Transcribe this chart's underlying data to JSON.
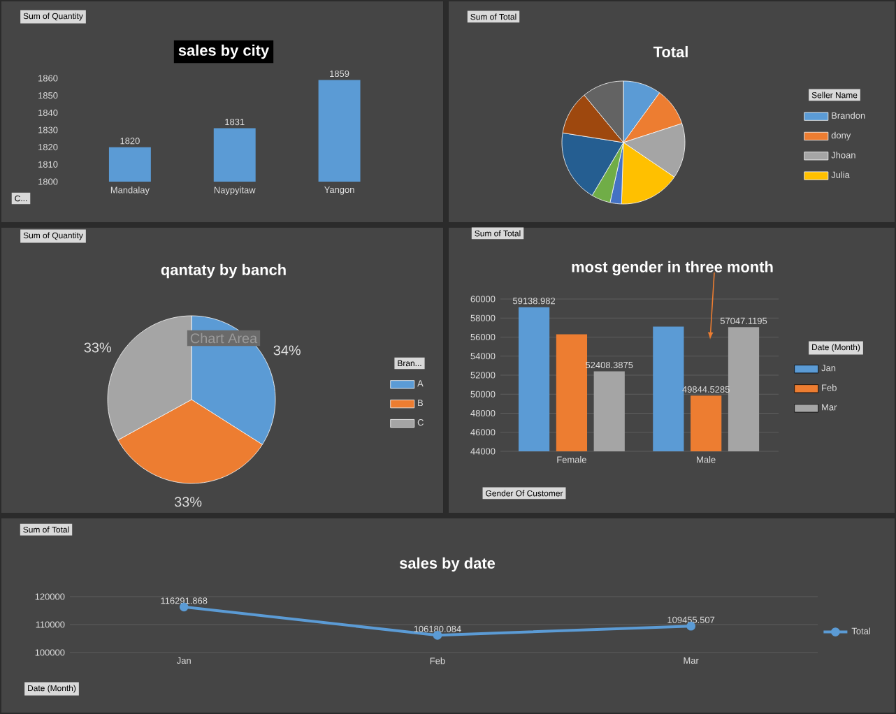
{
  "chart_data": [
    {
      "type": "bar",
      "title": "sales by city",
      "categories": [
        "Mandalay",
        "Naypyitaw",
        "Yangon"
      ],
      "values": [
        1820,
        1831,
        1859
      ],
      "color": "#5b9bd5",
      "ylim": [
        1800,
        1860
      ],
      "yticks": [
        1800,
        1810,
        1820,
        1830,
        1840,
        1850,
        1860
      ],
      "data_labels": true,
      "annotations": [
        "Sum of Quantity",
        "C..."
      ]
    },
    {
      "type": "pie",
      "title": "Total",
      "legend_title": "Seller Name",
      "categories": [
        "Brandon",
        "dony",
        "Jhoan",
        "Julia",
        null,
        null,
        null,
        null,
        null
      ],
      "values": [
        10,
        10,
        14.5,
        16,
        3,
        5,
        19,
        11.5,
        11
      ],
      "colors": [
        "#5b9bd5",
        "#ed7d31",
        "#a5a5a5",
        "#ffc000",
        "#4472c4",
        "#70ad47",
        "#255e91",
        "#9e480e",
        "#636363"
      ],
      "legend": "right",
      "annotations": [
        "Sum of Total"
      ]
    },
    {
      "type": "pie",
      "title": "qantaty by banch",
      "legend_title": "Bran...",
      "categories": [
        "A",
        "B",
        "C"
      ],
      "values": [
        34,
        33,
        33
      ],
      "value_labels": [
        "34%",
        "33%",
        "33%"
      ],
      "colors": [
        "#5b9bd5",
        "#ed7d31",
        "#a5a5a5"
      ],
      "legend": "right",
      "annotations": [
        "Sum of Quantity",
        "Chart Area"
      ]
    },
    {
      "type": "bar",
      "title": "most gender in three month",
      "legend_title": "Date (Month)",
      "categories": [
        "Female",
        "Male"
      ],
      "series": [
        {
          "name": "Jan",
          "color": "#5b9bd5",
          "values": [
            59138.982,
            57100
          ],
          "value_labels": [
            "59138.982",
            null
          ]
        },
        {
          "name": "Feb",
          "color": "#ed7d31",
          "values": [
            56300,
            49844.5285
          ],
          "value_labels": [
            null,
            "49844.5285"
          ]
        },
        {
          "name": "Mar",
          "color": "#a5a5a5",
          "values": [
            52408.3875,
            57047.1195
          ],
          "value_labels": [
            "52408.3875",
            "57047.1195"
          ]
        }
      ],
      "ylim": [
        44000,
        60000
      ],
      "yticks": [
        44000,
        46000,
        48000,
        50000,
        52000,
        54000,
        56000,
        58000,
        60000
      ],
      "grid": "y",
      "legend": "right",
      "annotations": [
        "Sum of Total",
        "Gender Of Customer"
      ]
    },
    {
      "type": "line",
      "title": "sales by date",
      "categories": [
        "Jan",
        "Feb",
        "Mar"
      ],
      "series": [
        {
          "name": "Total",
          "color": "#5b9bd5",
          "values": [
            116291.868,
            106180.084,
            109455.507
          ]
        }
      ],
      "ylim": [
        100000,
        120000
      ],
      "yticks": [
        100000,
        110000,
        120000
      ],
      "grid": "y",
      "legend": "right",
      "data_labels": true,
      "marker": "circle",
      "annotations": [
        "Sum of Total",
        "Date (Month)"
      ]
    }
  ]
}
